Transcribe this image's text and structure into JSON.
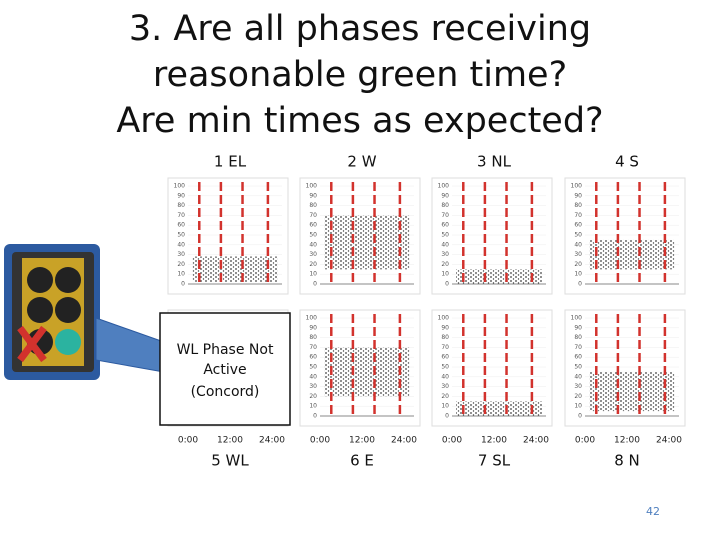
{
  "title": [
    "3.  Are all phases receiving",
    "reasonable green time?",
    "Are min times as expected?"
  ],
  "panels": [
    {
      "label": "1 EL"
    },
    {
      "label": "2 W"
    },
    {
      "label": "3 NL"
    },
    {
      "label": "4 S"
    },
    {
      "label": "5 WL"
    },
    {
      "label": "6 E"
    },
    {
      "label": "7 SL"
    },
    {
      "label": "8 N"
    }
  ],
  "y_ticks": [
    0,
    10,
    20,
    30,
    40,
    50,
    60,
    70,
    80,
    90,
    100
  ],
  "x_ticks": [
    "0:00",
    "12:00",
    "24:00"
  ],
  "callout": [
    "WL Phase Not",
    "Active",
    "(Concord)"
  ],
  "page_number": "42"
}
